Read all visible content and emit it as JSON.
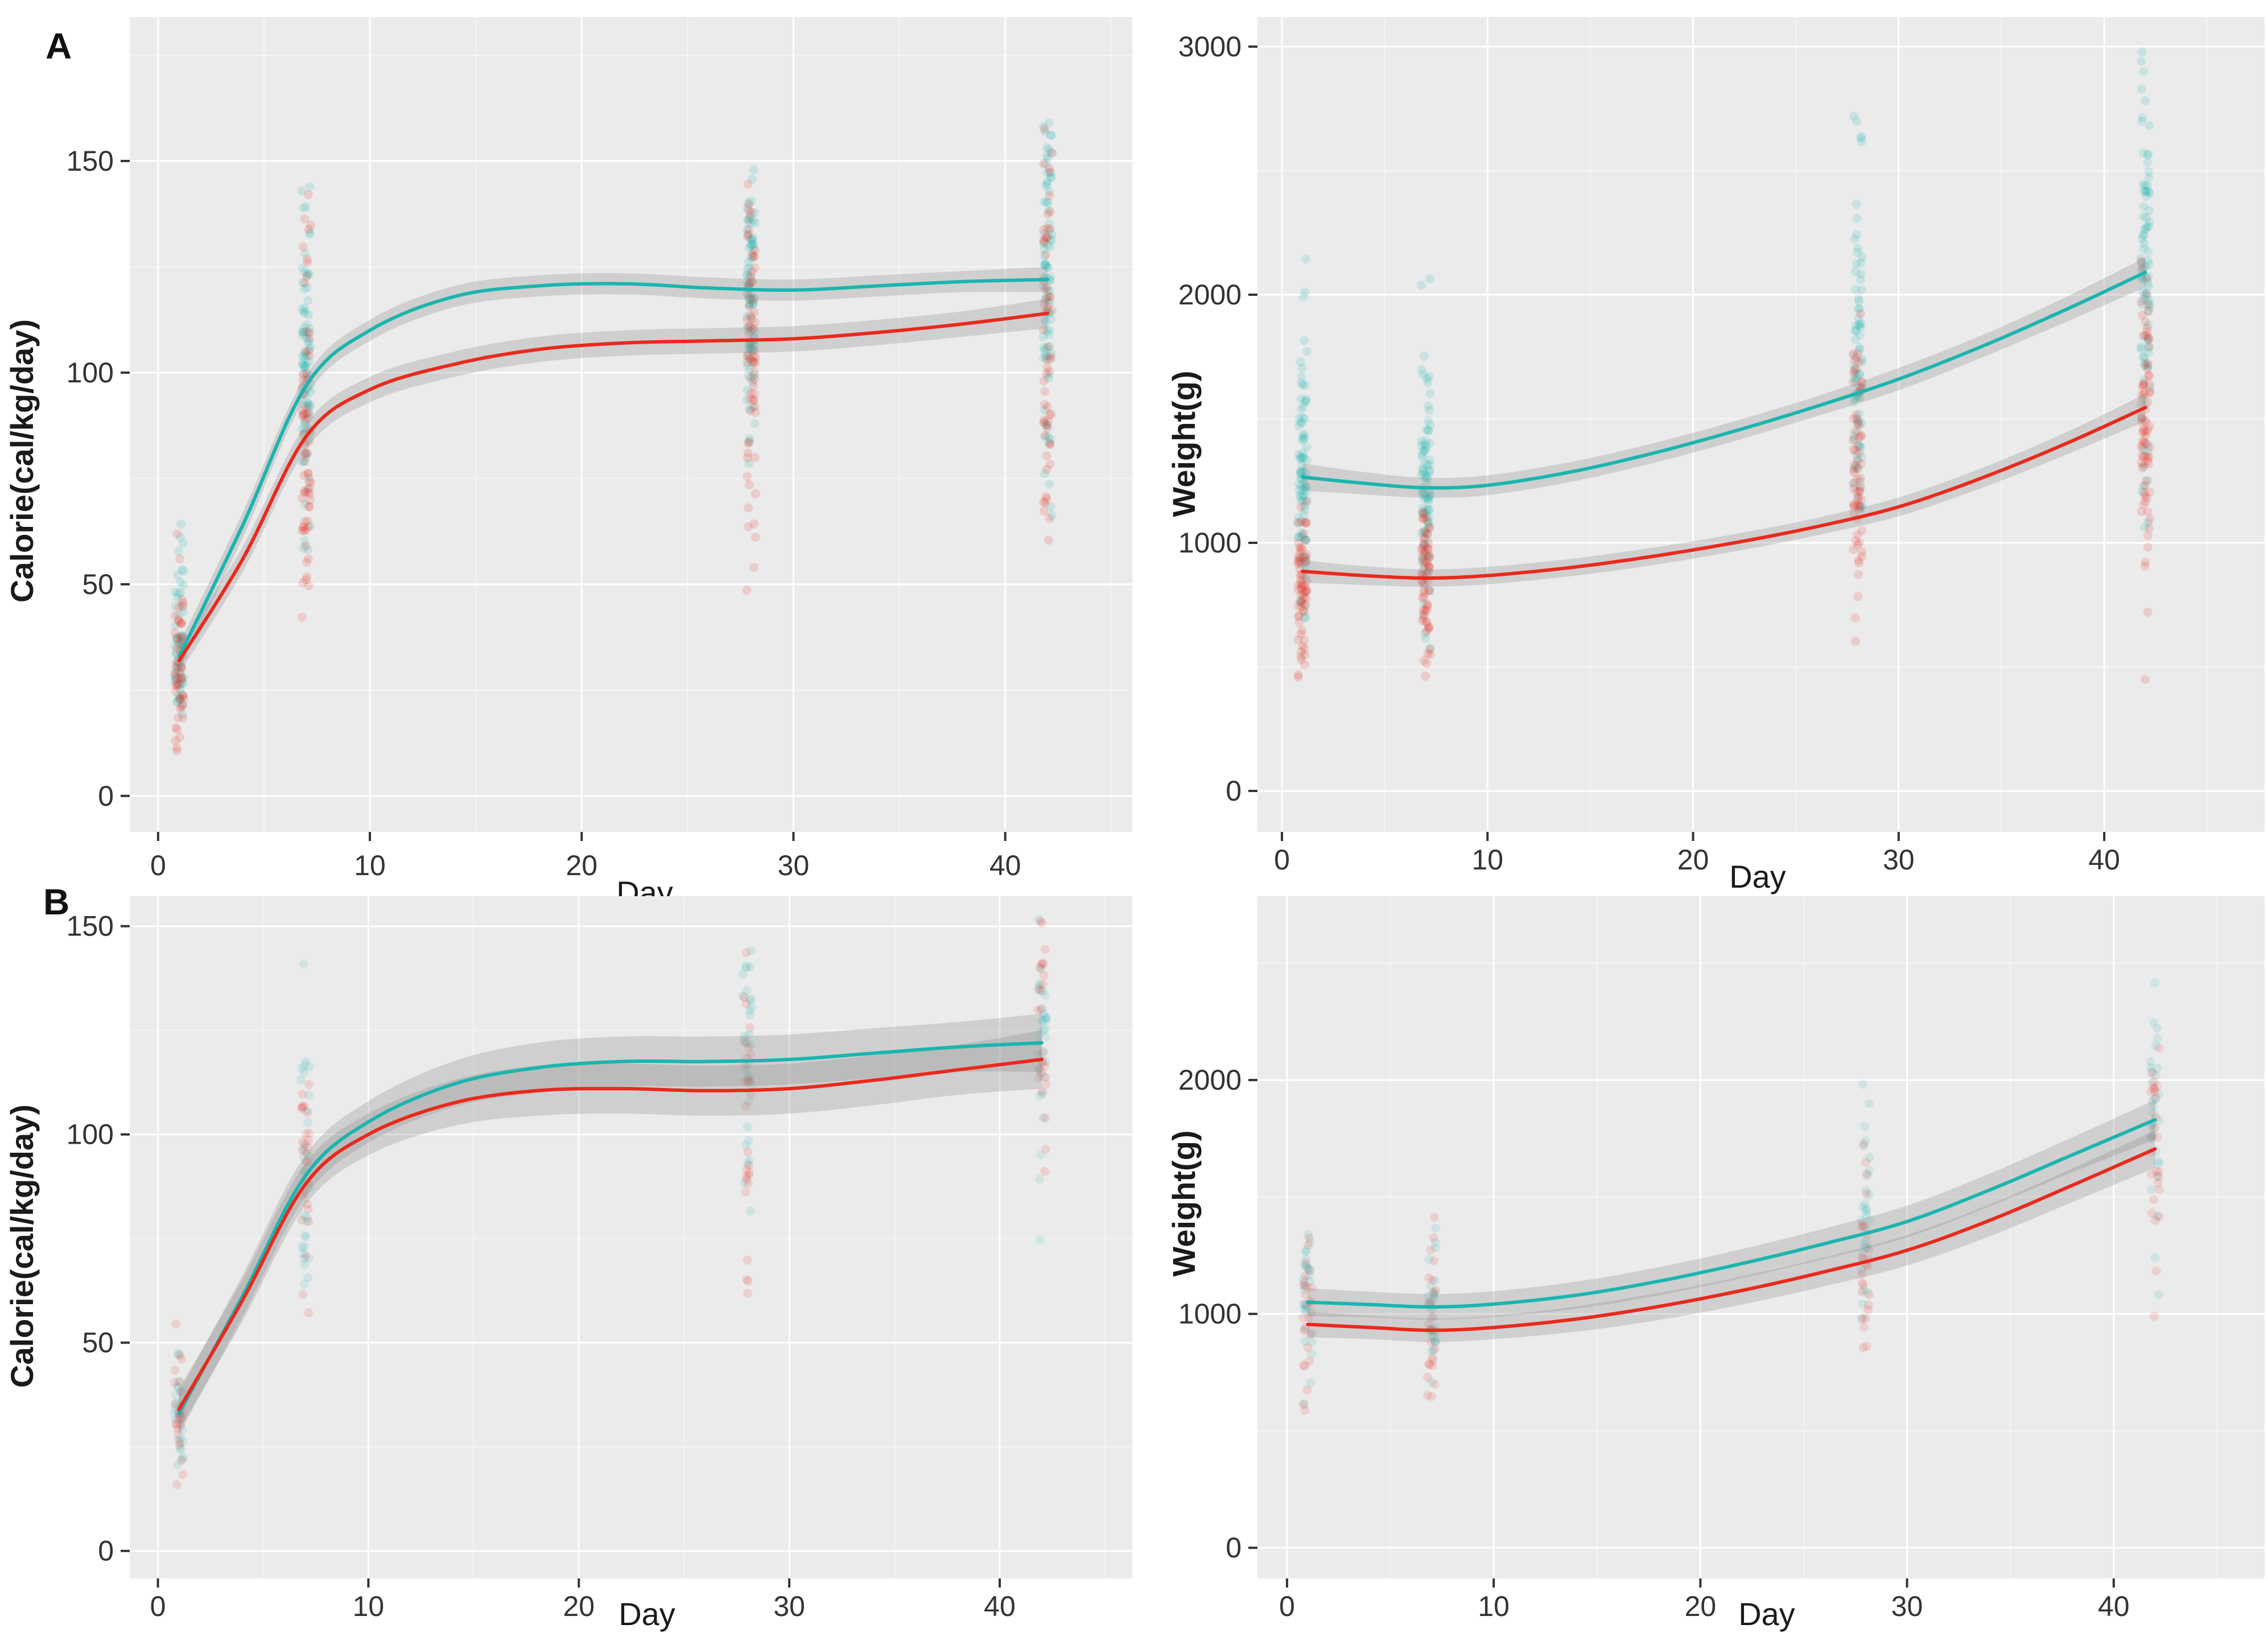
{
  "figure": {
    "panel_labels": [
      "A",
      "B"
    ],
    "colors": {
      "panel_background": "#ebebeb",
      "grid_major": "#ffffff",
      "grid_minor": "#f5f5f5",
      "band": "#8f8f8f",
      "tick_text": "#333333",
      "axis_title_text": "#1a1a1a",
      "group_teal": "#1ab5ae",
      "group_red": "#e9291d"
    }
  },
  "chart_data": [
    {
      "panel": "A",
      "position": "top-left",
      "type": "scatter",
      "smooth": "loess",
      "title": "",
      "xlabel": "Day",
      "ylabel": "Calorie(cal/kg/day)",
      "x_ticks": [
        0,
        10,
        20,
        30,
        40
      ],
      "x_minor_ticks": [
        5,
        15,
        25,
        35,
        45
      ],
      "y_ticks": [
        0,
        50,
        100,
        150
      ],
      "y_minor_ticks": [
        25,
        75,
        125,
        175
      ],
      "xlim": [
        -1.34,
        46.0
      ],
      "ylim": [
        -8.5,
        184
      ],
      "grid": true,
      "legend": "none",
      "point_alpha": 0.16,
      "x_sample_days": [
        1,
        4,
        7,
        10,
        14,
        18,
        22,
        26,
        30,
        34,
        38,
        42
      ],
      "series": [
        {
          "name": "group-teal",
          "color": "#1ab5ae",
          "values": [
            33,
            64,
            97,
            110,
            118,
            120.5,
            121,
            120,
            119.5,
            120.5,
            121.5,
            122
          ],
          "band_halfwidth": [
            3,
            3,
            2.5,
            2.5,
            2.5,
            2.5,
            2.5,
            2.5,
            2.5,
            2.5,
            2.5,
            3
          ]
        },
        {
          "name": "group-red",
          "color": "#e9291d",
          "values": [
            32,
            56,
            85,
            96,
            102,
            105.5,
            107,
            107.5,
            108,
            109.5,
            111.5,
            114
          ],
          "band_halfwidth": [
            3,
            3,
            3,
            3,
            3,
            3,
            3,
            3,
            3,
            3,
            3,
            3.5
          ]
        }
      ],
      "scatter_strips": [
        {
          "day": 1,
          "series": "group-teal",
          "center": 35,
          "sd": 10,
          "min": 18,
          "max": 68,
          "n": 60
        },
        {
          "day": 1,
          "series": "group-red",
          "center": 30,
          "sd": 9,
          "min": 10,
          "max": 62,
          "n": 55
        },
        {
          "day": 7,
          "series": "group-teal",
          "center": 100,
          "sd": 18,
          "min": 58,
          "max": 148,
          "n": 85
        },
        {
          "day": 7,
          "series": "group-red",
          "center": 85,
          "sd": 20,
          "min": 38,
          "max": 147,
          "n": 70
        },
        {
          "day": 28,
          "series": "group-teal",
          "center": 118,
          "sd": 16,
          "min": 78,
          "max": 150,
          "n": 85
        },
        {
          "day": 28,
          "series": "group-red",
          "center": 105,
          "sd": 20,
          "min": 37,
          "max": 146,
          "n": 70
        },
        {
          "day": 42,
          "series": "group-teal",
          "center": 122,
          "sd": 18,
          "min": 58,
          "max": 165,
          "n": 85
        },
        {
          "day": 42,
          "series": "group-red",
          "center": 112,
          "sd": 22,
          "min": 45,
          "max": 160,
          "n": 60
        }
      ]
    },
    {
      "panel": "A",
      "position": "top-right",
      "type": "scatter",
      "smooth": "loess",
      "title": "",
      "xlabel": "Day",
      "ylabel": "Weight(g)",
      "x_ticks": [
        0,
        10,
        20,
        30,
        40
      ],
      "x_minor_ticks": [
        5,
        15,
        25,
        35,
        45
      ],
      "y_ticks": [
        0,
        1000,
        2000,
        3000
      ],
      "y_minor_ticks": [
        500,
        1500,
        2500
      ],
      "xlim": [
        -1.19,
        47.8
      ],
      "ylim": [
        -165,
        3119
      ],
      "grid": true,
      "legend": "none",
      "point_alpha": 0.16,
      "x_sample_days": [
        1,
        4,
        7,
        10,
        14,
        18,
        22,
        26,
        30,
        34,
        38,
        42
      ],
      "series": [
        {
          "name": "group-teal",
          "color": "#1ab5ae",
          "values": [
            1265,
            1240,
            1222,
            1232,
            1285,
            1360,
            1450,
            1550,
            1660,
            1790,
            1935,
            2090
          ],
          "band_halfwidth": [
            55,
            45,
            40,
            40,
            40,
            40,
            40,
            40,
            45,
            45,
            50,
            60
          ]
        },
        {
          "name": "group-red",
          "color": "#e9291d",
          "values": [
            885,
            868,
            858,
            868,
            900,
            945,
            1000,
            1065,
            1145,
            1260,
            1395,
            1545
          ],
          "band_halfwidth": [
            45,
            38,
            35,
            35,
            35,
            35,
            35,
            35,
            38,
            40,
            45,
            55
          ]
        }
      ],
      "scatter_strips": [
        {
          "day": 1,
          "series": "group-teal",
          "center": 1270,
          "sd": 250,
          "min": 600,
          "max": 2150,
          "n": 90
        },
        {
          "day": 1,
          "series": "group-red",
          "center": 880,
          "sd": 160,
          "min": 420,
          "max": 1250,
          "n": 70
        },
        {
          "day": 7,
          "series": "group-teal",
          "center": 1225,
          "sd": 250,
          "min": 500,
          "max": 2100,
          "n": 90
        },
        {
          "day": 7,
          "series": "group-red",
          "center": 860,
          "sd": 160,
          "min": 440,
          "max": 1250,
          "n": 70
        },
        {
          "day": 28,
          "series": "group-teal",
          "center": 1700,
          "sd": 300,
          "min": 1100,
          "max": 2870,
          "n": 80
        },
        {
          "day": 28,
          "series": "group-red",
          "center": 1240,
          "sd": 250,
          "min": 600,
          "max": 1950,
          "n": 70
        },
        {
          "day": 42,
          "series": "group-teal",
          "center": 2090,
          "sd": 350,
          "min": 1050,
          "max": 3060,
          "n": 90
        },
        {
          "day": 42,
          "series": "group-red",
          "center": 1540,
          "sd": 300,
          "min": 380,
          "max": 2150,
          "n": 80
        }
      ]
    },
    {
      "panel": "B",
      "position": "bottom-left",
      "type": "scatter",
      "smooth": "loess",
      "title": "",
      "xlabel": "Day",
      "ylabel": "Calorie(cal/kg/day)",
      "x_ticks": [
        0,
        10,
        20,
        30,
        40
      ],
      "x_minor_ticks": [
        5,
        15,
        25,
        35,
        45
      ],
      "y_ticks": [
        0,
        50,
        100,
        150
      ],
      "y_minor_ticks": [
        25,
        75,
        125
      ],
      "xlim": [
        -1.34,
        46.3
      ],
      "ylim": [
        -6.6,
        157.2
      ],
      "grid": true,
      "legend": "none",
      "point_alpha": 0.13,
      "x_sample_days": [
        1,
        4,
        7,
        10,
        14,
        18,
        22,
        26,
        30,
        34,
        38,
        42
      ],
      "series": [
        {
          "name": "group-teal",
          "color": "#1ab5ae",
          "values": [
            33,
            61,
            90,
            103,
            112,
            116,
            117.5,
            117.5,
            118,
            119.5,
            121,
            122
          ],
          "band_halfwidth": [
            5,
            5,
            5,
            5,
            5.5,
            6,
            6,
            6,
            6,
            6,
            6,
            7
          ]
        },
        {
          "name": "group-red",
          "color": "#e9291d",
          "values": [
            34,
            60,
            88,
            100,
            107.5,
            110.5,
            111,
            110.5,
            111,
            113,
            115.5,
            118
          ],
          "band_halfwidth": [
            5,
            5,
            5,
            5,
            5.5,
            6,
            6,
            6,
            6,
            6,
            6,
            7
          ]
        }
      ],
      "scatter_strips": [
        {
          "day": 1,
          "series": "group-teal",
          "center": 34,
          "sd": 8,
          "min": 20,
          "max": 52,
          "n": 25
        },
        {
          "day": 1,
          "series": "group-red",
          "center": 33,
          "sd": 10,
          "min": 11,
          "max": 56,
          "n": 25
        },
        {
          "day": 7,
          "series": "group-teal",
          "center": 95,
          "sd": 22,
          "min": 58,
          "max": 152,
          "n": 30
        },
        {
          "day": 7,
          "series": "group-red",
          "center": 90,
          "sd": 22,
          "min": 55,
          "max": 148,
          "n": 28
        },
        {
          "day": 28,
          "series": "group-teal",
          "center": 118,
          "sd": 20,
          "min": 57,
          "max": 150,
          "n": 30
        },
        {
          "day": 28,
          "series": "group-red",
          "center": 111,
          "sd": 22,
          "min": 58,
          "max": 145,
          "n": 28
        },
        {
          "day": 42,
          "series": "group-teal",
          "center": 122,
          "sd": 16,
          "min": 60,
          "max": 156,
          "n": 30
        },
        {
          "day": 42,
          "series": "group-red",
          "center": 118,
          "sd": 18,
          "min": 88,
          "max": 152,
          "n": 26
        }
      ]
    },
    {
      "panel": "B",
      "position": "bottom-right",
      "type": "scatter",
      "smooth": "loess",
      "title": "",
      "xlabel": "Day",
      "ylabel": "Weight(g)",
      "x_ticks": [
        0,
        10,
        20,
        30,
        40
      ],
      "x_minor_ticks": [
        5,
        15,
        25,
        35,
        45
      ],
      "y_ticks": [
        0,
        1000,
        2000
      ],
      "y_minor_ticks": [
        500,
        1500,
        2500
      ],
      "xlim": [
        -1.43,
        47.3
      ],
      "ylim": [
        -131,
        2786
      ],
      "grid": true,
      "legend": "none",
      "point_alpha": 0.13,
      "x_sample_days": [
        1,
        4,
        7,
        10,
        14,
        18,
        22,
        26,
        30,
        34,
        38,
        42
      ],
      "series": [
        {
          "name": "group-teal",
          "color": "#1ab5ae",
          "values": [
            1050,
            1040,
            1030,
            1042,
            1080,
            1140,
            1215,
            1300,
            1395,
            1530,
            1680,
            1830
          ],
          "band_halfwidth": [
            60,
            55,
            55,
            55,
            58,
            60,
            62,
            65,
            68,
            70,
            75,
            85
          ]
        },
        {
          "name": "group-red",
          "color": "#e9291d",
          "values": [
            955,
            942,
            930,
            942,
            978,
            1032,
            1100,
            1180,
            1272,
            1400,
            1550,
            1705
          ],
          "band_halfwidth": [
            55,
            50,
            50,
            50,
            54,
            58,
            60,
            62,
            65,
            68,
            72,
            80
          ]
        }
      ],
      "scatter_strips": [
        {
          "day": 1,
          "series": "group-teal",
          "center": 1060,
          "sd": 150,
          "min": 580,
          "max": 1450,
          "n": 28
        },
        {
          "day": 1,
          "series": "group-red",
          "center": 960,
          "sd": 150,
          "min": 560,
          "max": 1380,
          "n": 26
        },
        {
          "day": 7,
          "series": "group-teal",
          "center": 1035,
          "sd": 150,
          "min": 680,
          "max": 1500,
          "n": 28
        },
        {
          "day": 7,
          "series": "group-red",
          "center": 935,
          "sd": 150,
          "min": 640,
          "max": 1430,
          "n": 26
        },
        {
          "day": 28,
          "series": "group-teal",
          "center": 1400,
          "sd": 200,
          "min": 950,
          "max": 2060,
          "n": 28
        },
        {
          "day": 28,
          "series": "group-red",
          "center": 1280,
          "sd": 200,
          "min": 800,
          "max": 1900,
          "n": 26
        },
        {
          "day": 42,
          "series": "group-teal",
          "center": 1830,
          "sd": 250,
          "min": 1050,
          "max": 2600,
          "n": 30
        },
        {
          "day": 42,
          "series": "group-red",
          "center": 1700,
          "sd": 250,
          "min": 900,
          "max": 2150,
          "n": 26
        }
      ]
    }
  ]
}
